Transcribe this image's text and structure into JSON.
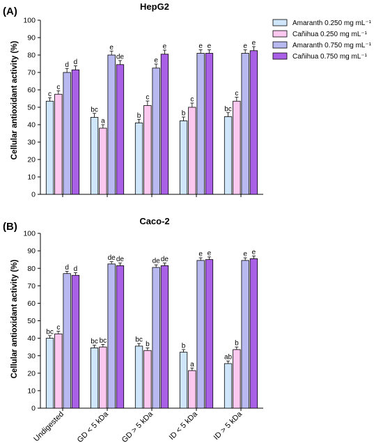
{
  "series_names": [
    "Amaranth 0.250 mg mL⁻¹",
    "Cañihua 0.250 mg mL⁻¹",
    "Amaranth 0.750 mg mL⁻¹",
    "Cañihua 0.750 mg mL⁻¹"
  ],
  "colors": [
    "#cfe6fa",
    "#fcc8f0",
    "#b9b9f1",
    "#a95fe6"
  ],
  "chart_data": [
    {
      "type": "bar",
      "panel_label": "(A)",
      "title": "HepG2",
      "ylabel": "Cellular antioxidant activity (%)",
      "xlabel": "",
      "ylim": [
        0,
        100
      ],
      "yticks": [
        0,
        10,
        20,
        30,
        40,
        50,
        60,
        70,
        80,
        90,
        100
      ],
      "categories": [
        "Undigested",
        "GD < 5 kDa",
        "GD > 5 kDa",
        "ID < 5 kDa",
        "ID > 5 kDa"
      ],
      "legend": "top-right",
      "grid": false,
      "series": [
        {
          "name": "Amaranth 0.250 mg mL⁻¹",
          "values": [
            53.5,
            44.2,
            41.0,
            42.2,
            44.6
          ],
          "errors": [
            2.0,
            2.3,
            2.1,
            2.2,
            2.3
          ],
          "labels": [
            "c",
            "bc",
            "b",
            "b",
            "bc"
          ]
        },
        {
          "name": "Cañihua 0.250 mg mL⁻¹",
          "values": [
            57.5,
            38.0,
            51.0,
            50.0,
            53.5
          ],
          "errors": [
            2.0,
            2.0,
            2.6,
            2.4,
            2.3
          ],
          "labels": [
            "c",
            "a",
            "c",
            "c",
            "c"
          ]
        },
        {
          "name": "Amaranth 0.750 mg mL⁻¹",
          "values": [
            70.0,
            80.0,
            72.5,
            81.0,
            81.0
          ],
          "errors": [
            2.3,
            2.3,
            2.3,
            2.0,
            2.0
          ],
          "labels": [
            "d",
            "e",
            "e",
            "e",
            "e"
          ]
        },
        {
          "name": "Cañihua 0.750 mg mL⁻¹",
          "values": [
            71.5,
            74.5,
            80.5,
            81.0,
            82.5
          ],
          "errors": [
            2.3,
            2.3,
            2.3,
            2.0,
            2.3
          ],
          "labels": [
            "d",
            "de",
            "e",
            "e",
            "e"
          ]
        }
      ]
    },
    {
      "type": "bar",
      "panel_label": "(B)",
      "title": "Caco-2",
      "ylabel": "Cellular antioxidant activity (%)",
      "xlabel": "",
      "ylim": [
        0,
        100
      ],
      "yticks": [
        0,
        10,
        20,
        30,
        40,
        50,
        60,
        70,
        80,
        90,
        100
      ],
      "categories": [
        "Undigested",
        "GD < 5 kDa",
        "GD > 5 kDa",
        "ID < 5 kDa",
        "ID > 5 kDa"
      ],
      "legend": "top-right",
      "grid": false,
      "series": [
        {
          "name": "Amaranth 0.250 mg mL⁻¹",
          "values": [
            40.0,
            34.5,
            35.5,
            32.0,
            25.5
          ],
          "errors": [
            1.5,
            1.5,
            1.5,
            1.5,
            1.5
          ],
          "labels": [
            "bc",
            "bc",
            "bc",
            "b",
            "ab"
          ]
        },
        {
          "name": "Cañihua 0.250 mg mL⁻¹",
          "values": [
            42.5,
            35.0,
            33.0,
            21.5,
            33.5
          ],
          "errors": [
            1.5,
            1.5,
            1.5,
            1.5,
            1.5
          ],
          "labels": [
            "c",
            "bc",
            "b",
            "a",
            "b"
          ]
        },
        {
          "name": "Amaranth 0.750 mg mL⁻¹",
          "values": [
            77.0,
            82.5,
            80.5,
            84.5,
            84.5
          ],
          "errors": [
            1.3,
            1.3,
            1.5,
            1.5,
            1.5
          ],
          "labels": [
            "d",
            "de",
            "de",
            "e",
            "e"
          ]
        },
        {
          "name": "Cañihua 0.750 mg mL⁻¹",
          "values": [
            76.0,
            81.5,
            81.5,
            85.0,
            85.5
          ],
          "errors": [
            1.5,
            1.5,
            1.5,
            1.5,
            1.5
          ],
          "labels": [
            "d",
            "de",
            "de",
            "e",
            "e"
          ]
        }
      ]
    }
  ]
}
